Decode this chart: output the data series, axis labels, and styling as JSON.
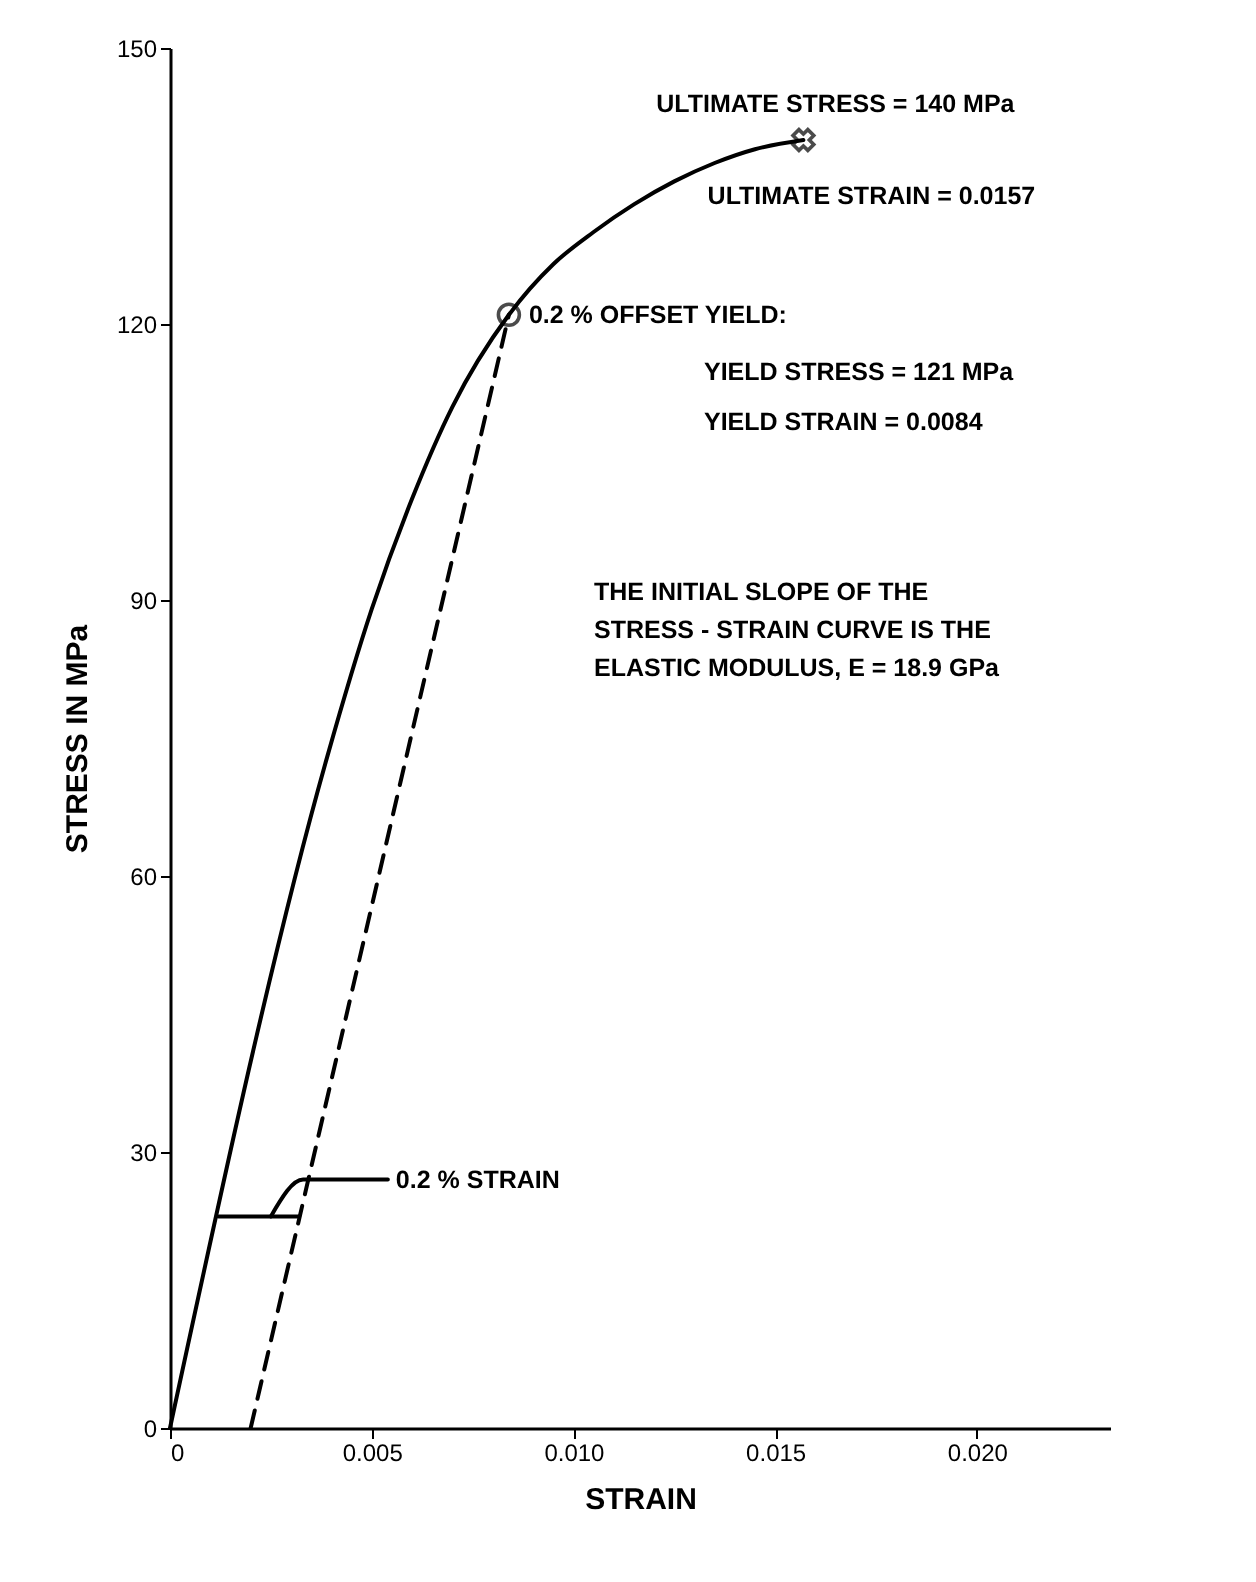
{
  "chart_data": {
    "type": "line",
    "xlabel": "STRAIN",
    "ylabel": "STRESS IN MPa",
    "xlim": [
      0,
      0.0233
    ],
    "xticks": [
      0,
      {
        "value": 0.005,
        "label": "0.005"
      },
      {
        "value": 0.01,
        "label": "0.010"
      },
      {
        "value": 0.015,
        "label": "0.015"
      },
      {
        "value": 0.02,
        "label": "0.020"
      }
    ],
    "ylim": [
      0,
      150
    ],
    "yticks": [
      0,
      30,
      60,
      90,
      120,
      150
    ],
    "grid": false,
    "series": [
      {
        "color": "#000000",
        "line_style": "solid",
        "marker": "none",
        "x": [
          0,
          0.0039,
          0.005,
          0.006,
          0.007,
          0.0084,
          0.0095,
          0.0105,
          0.0115,
          0.0125,
          0.0135,
          0.0145,
          0.0157
        ],
        "values": [
          0,
          73,
          89,
          101,
          111,
          121,
          126.5,
          130,
          133,
          135.5,
          137.5,
          139,
          140
        ]
      },
      {
        "color": "#000000",
        "line_style": "dashed",
        "marker": "none",
        "x": [
          0.002,
          0.0084
        ],
        "values": [
          0,
          121
        ]
      },
      {
        "color": "#000000",
        "line_style": "solid",
        "marker": "none",
        "x": [
          0.0012,
          0.0032
        ],
        "values": [
          23,
          23
        ]
      },
      {
        "color": "#000000",
        "line_style": "solid",
        "marker": "none",
        "x": [
          0.0025,
          0.0033,
          0.0054
        ],
        "values": [
          23,
          27,
          27
        ]
      },
      {
        "type": "scatter",
        "color": "#000000",
        "marker": "circle",
        "x": [
          0.0084
        ],
        "values": [
          121
        ]
      },
      {
        "type": "scatter",
        "color": "#000000",
        "marker": "cross",
        "x": [
          0.0157
        ],
        "values": [
          140
        ]
      }
    ],
    "annotations": [
      {
        "text": "ULTIMATE STRESS = 140 MPa",
        "x": 0.0157,
        "y": 140
      },
      {
        "text": "ULTIMATE STRAIN = 0.0157",
        "x": 0.0157,
        "y": 140
      },
      {
        "text": "0.2 % OFFSET YIELD:",
        "x": 0.0084,
        "y": 121
      },
      "YIELD STRESS = 121 MPa",
      "YIELD STRAIN = 0.0084",
      "THE INITIAL SLOPE OF THE\nSTRESS - STRAIN CURVE IS THE\nELASTIC MODULUS, E = 18.9 GPa",
      {
        "text": "0.2 % STRAIN",
        "x": 0.0054,
        "y": 27
      }
    ]
  }
}
